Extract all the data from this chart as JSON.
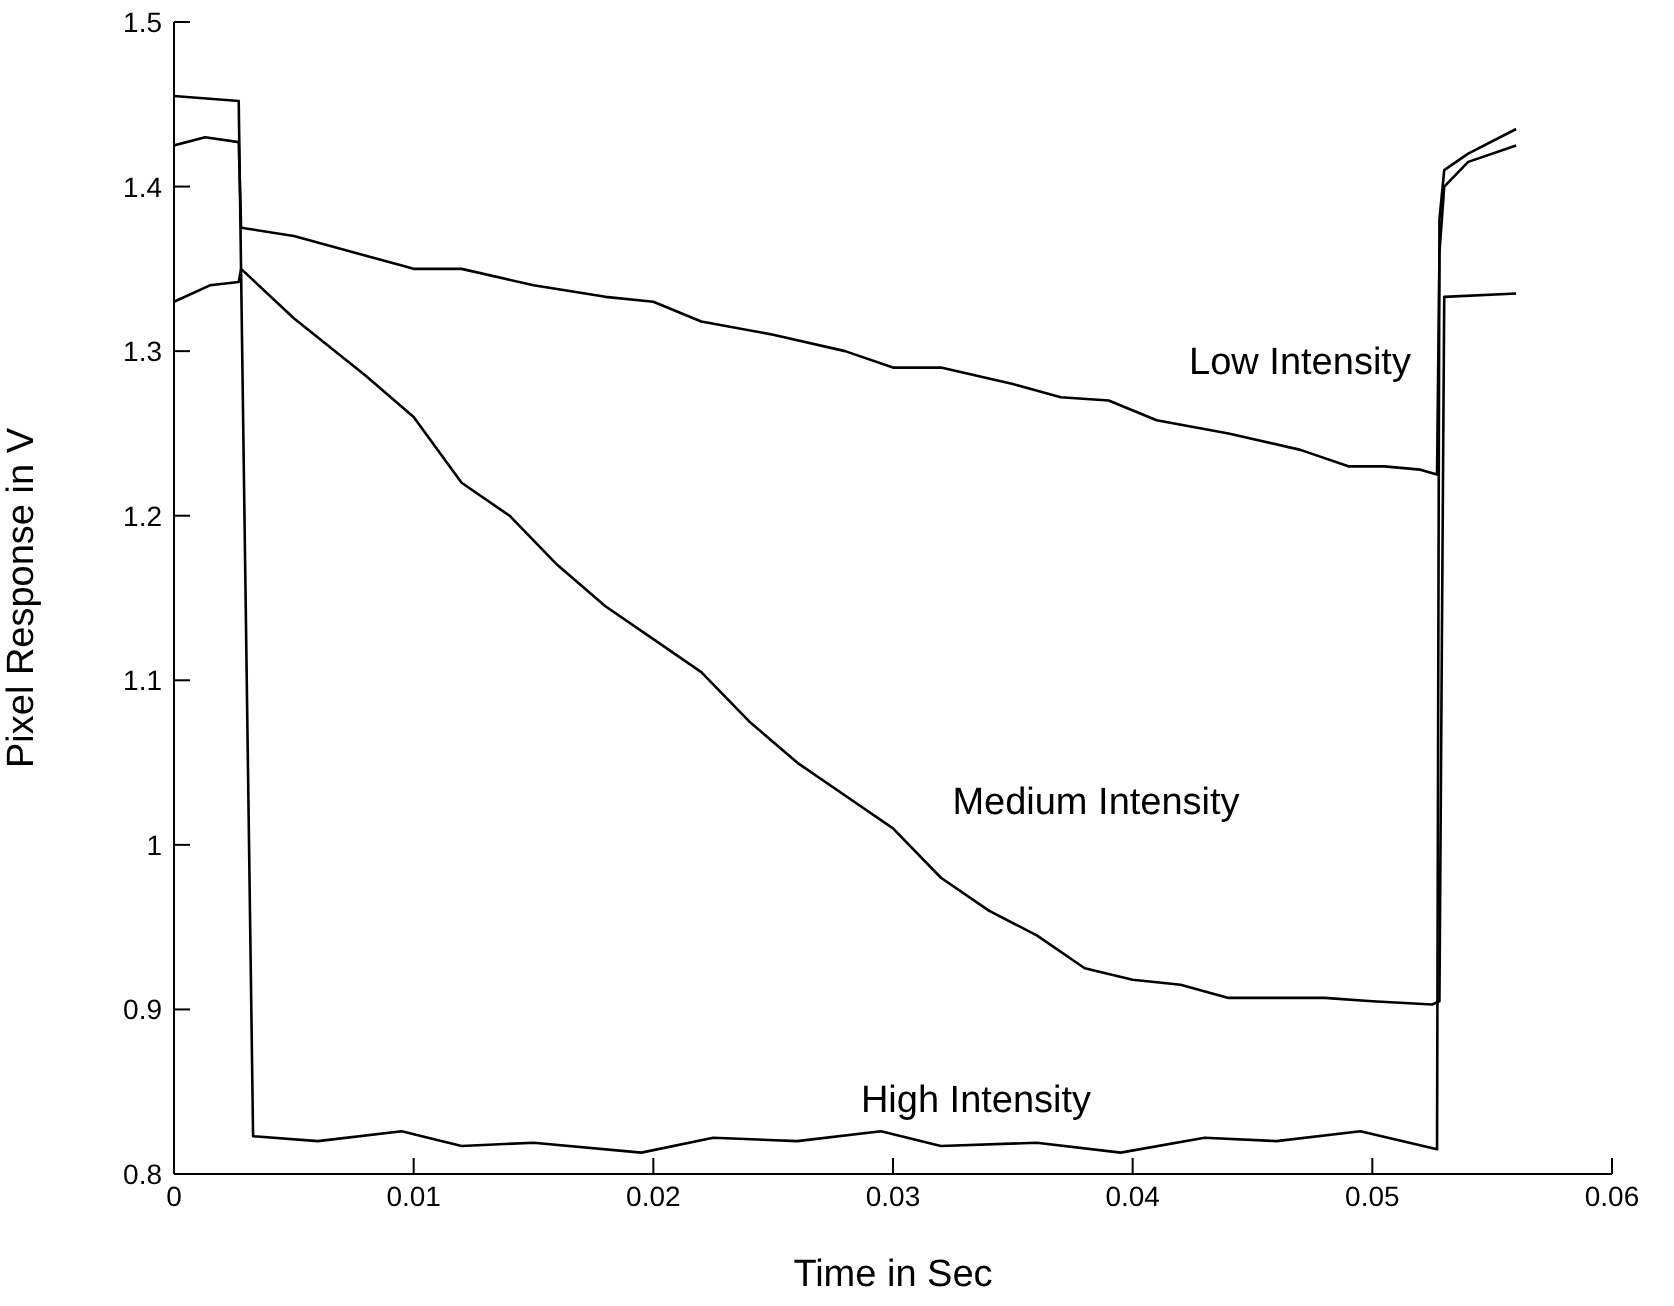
{
  "chart_data": {
    "type": "line",
    "xlabel": "Time in Sec",
    "ylabel": "Pixel Response in V",
    "xlim": [
      0,
      0.06
    ],
    "ylim": [
      0.8,
      1.5
    ],
    "xticks": [
      0,
      0.01,
      0.02,
      0.03,
      0.04,
      0.05,
      0.06
    ],
    "yticks": [
      0.8,
      0.9,
      1,
      1.1,
      1.2,
      1.3,
      1.4,
      1.5
    ],
    "grid": false,
    "legend": false,
    "marker": "none",
    "line_style": "solid",
    "series": [
      {
        "color": "#000000",
        "x": [
          0,
          0.0013,
          0.0027,
          0.0028,
          0.005,
          0.01,
          0.012,
          0.015,
          0.018,
          0.02,
          0.022,
          0.025,
          0.028,
          0.03,
          0.032,
          0.035,
          0.037,
          0.039,
          0.041,
          0.044,
          0.047,
          0.049,
          0.0505,
          0.052,
          0.0527,
          0.0528,
          0.053,
          0.054,
          0.056
        ],
        "values": [
          1.425,
          1.43,
          1.427,
          1.375,
          1.37,
          1.35,
          1.35,
          1.34,
          1.333,
          1.33,
          1.318,
          1.31,
          1.3,
          1.29,
          1.29,
          1.28,
          1.272,
          1.27,
          1.258,
          1.25,
          1.24,
          1.23,
          1.23,
          1.228,
          1.225,
          1.36,
          1.4,
          1.415,
          1.425
        ]
      },
      {
        "color": "#000000",
        "x": [
          0,
          0.0015,
          0.0027,
          0.0028,
          0.005,
          0.008,
          0.01,
          0.012,
          0.014,
          0.016,
          0.018,
          0.02,
          0.022,
          0.024,
          0.026,
          0.028,
          0.03,
          0.032,
          0.034,
          0.036,
          0.038,
          0.04,
          0.042,
          0.044,
          0.046,
          0.048,
          0.05,
          0.0525,
          0.0528,
          0.053,
          0.056
        ],
        "values": [
          1.33,
          1.34,
          1.342,
          1.35,
          1.32,
          1.285,
          1.26,
          1.22,
          1.2,
          1.17,
          1.145,
          1.125,
          1.105,
          1.075,
          1.05,
          1.03,
          1.01,
          0.98,
          0.96,
          0.945,
          0.925,
          0.918,
          0.915,
          0.907,
          0.907,
          0.907,
          0.905,
          0.903,
          0.905,
          1.333,
          1.335
        ]
      },
      {
        "color": "#000000",
        "x": [
          0,
          0.0027,
          0.0033,
          0.006,
          0.0095,
          0.012,
          0.015,
          0.0195,
          0.0225,
          0.026,
          0.0295,
          0.032,
          0.036,
          0.0395,
          0.043,
          0.046,
          0.0495,
          0.0527,
          0.0528,
          0.053,
          0.054,
          0.056
        ],
        "values": [
          1.455,
          1.452,
          0.823,
          0.82,
          0.826,
          0.817,
          0.819,
          0.813,
          0.822,
          0.82,
          0.826,
          0.817,
          0.819,
          0.813,
          0.822,
          0.82,
          0.826,
          0.815,
          1.38,
          1.41,
          1.42,
          1.435
        ]
      }
    ],
    "annotations": [
      "Low Intensity",
      "Medium Intensity",
      "High Intensity"
    ]
  }
}
